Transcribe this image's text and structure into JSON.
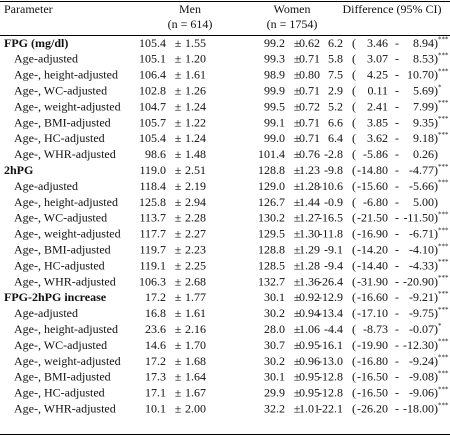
{
  "table": {
    "header": {
      "parameter": "Parameter",
      "men": "Men",
      "men_n": "(n = 614)",
      "women": "Women",
      "women_n": "(n = 1754)",
      "difference": "Difference (95% CI)"
    },
    "separators": {
      "pm": "±",
      "open": "(",
      "dash": "-",
      "close": ")"
    },
    "sections": [
      {
        "row": [
          "FPG (mg/dl)",
          "105.4",
          "1.55",
          "99.2",
          "0.62",
          "6.2",
          "3.46",
          "8.94",
          "***"
        ],
        "rows": [
          [
            "Age-adjusted",
            "105.1",
            "1.20",
            "99.3",
            "0.71",
            "5.8",
            "3.07",
            "8.53",
            "***"
          ],
          [
            "Age-, height-adjusted",
            "106.4",
            "1.61",
            "98.9",
            "0.80",
            "7.5",
            "4.25",
            "10.70",
            "***"
          ],
          [
            "Age-, WC-adjusted",
            "102.8",
            "1.26",
            "99.9",
            "0.71",
            "2.9",
            "0.11",
            "5.69",
            "*"
          ],
          [
            "Age-, weight-adjusted",
            "104.7",
            "1.24",
            "99.5",
            "0.72",
            "5.2",
            "2.41",
            "7.99",
            "***"
          ],
          [
            "Age-, BMI-adjusted",
            "105.7",
            "1.22",
            "99.1",
            "0.71",
            "6.6",
            "3.85",
            "9.35",
            "***"
          ],
          [
            "Age-, HC-adjusted",
            "105.4",
            "1.24",
            "99.0",
            "0.71",
            "6.4",
            "3.62",
            "9.18",
            "***"
          ],
          [
            "Age-, WHR-adjusted",
            "98.6",
            "1.48",
            "101.4",
            "0.76",
            "-2.8",
            "-5.86",
            "0.26",
            null
          ]
        ]
      },
      {
        "row": [
          "2hPG",
          "119.0",
          "2.51",
          "128.8",
          "1.23",
          "-9.8",
          "-14.80",
          "-4.77",
          "***"
        ],
        "rows": [
          [
            "Age-adjusted",
            "118.4",
            "2.19",
            "129.0",
            "1.28",
            "-10.6",
            "-15.60",
            "-5.66",
            "***"
          ],
          [
            "Age-, height-adjusted",
            "125.8",
            "2.94",
            "126.7",
            "1.44",
            "-0.9",
            "-6.80",
            "5.00",
            null
          ],
          [
            "Age-, WC-adjusted",
            "113.7",
            "2.28",
            "130.2",
            "1.27",
            "-16.5",
            "-21.50",
            "-11.50",
            "***"
          ],
          [
            "Age-, weight-adjusted",
            "117.7",
            "2.27",
            "129.5",
            "1.30",
            "-11.8",
            "-16.90",
            "-6.71",
            "***"
          ],
          [
            "Age-, BMI-adjusted",
            "119.7",
            "2.23",
            "128.8",
            "1.29",
            "-9.1",
            "-14.20",
            "-4.10",
            "***"
          ],
          [
            "Age-, HC-adjusted",
            "119.1",
            "2.25",
            "128.5",
            "1.28",
            "-9.4",
            "-14.40",
            "-4.33",
            "***"
          ],
          [
            "Age-, WHR-adjusted",
            "106.3",
            "2.68",
            "132.7",
            "1.36",
            "-26.4",
            "-31.90",
            "-20.90",
            "***"
          ]
        ]
      },
      {
        "row": [
          "FPG-2hPG increase",
          "17.2",
          "1.77",
          "30.1",
          "0.92",
          "-12.9",
          "-16.60",
          "-9.21",
          "***"
        ],
        "rows": [
          [
            "Age-adjusted",
            "16.8",
            "1.61",
            "30.2",
            "0.94",
            "-13.4",
            "-17.10",
            "-9.75",
            "***"
          ],
          [
            "Age-, height-adjusted",
            "23.6",
            "2.16",
            "28.0",
            "1.06",
            "-4.4",
            "-8.73",
            "-0.07",
            "*"
          ],
          [
            "Age-, WC-adjusted",
            "14.6",
            "1.70",
            "30.7",
            "0.95",
            "-16.1",
            "-19.90",
            "-12.30",
            "***"
          ],
          [
            "Age-, weight-adjusted",
            "17.2",
            "1.68",
            "30.2",
            "0.96",
            "-13.0",
            "-16.80",
            "-9.24",
            "***"
          ],
          [
            "Age-, BMI-adjusted",
            "17.3",
            "1.64",
            "30.1",
            "0.95",
            "-12.8",
            "-16.50",
            "-9.08",
            "***"
          ],
          [
            "Age-, HC-adjusted",
            "17.1",
            "1.67",
            "29.9",
            "0.95",
            "-12.8",
            "-16.50",
            "-9.06",
            "***"
          ],
          [
            "Age-, WHR-adjusted",
            "10.1",
            "2.00",
            "32.2",
            "1.01",
            "-22.1",
            "-26.20",
            "-18.00",
            "***"
          ]
        ]
      }
    ]
  }
}
